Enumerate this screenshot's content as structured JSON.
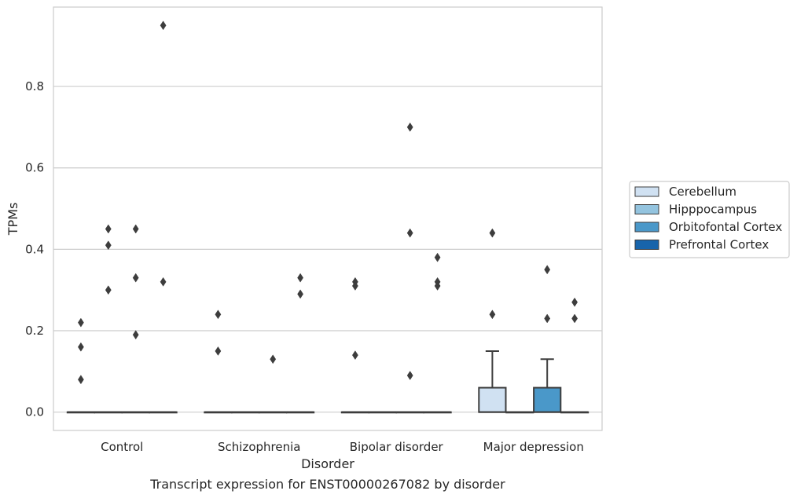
{
  "chart_data": {
    "type": "box",
    "title": "",
    "caption": "Transcript expression for ENST00000267082 by disorder",
    "xlabel": "Disorder",
    "ylabel": "TPMs",
    "ylim": [
      -0.045,
      0.995
    ],
    "yticks": [
      0.0,
      0.2,
      0.4,
      0.6,
      0.8
    ],
    "ytick_labels": [
      "0.0",
      "0.2",
      "0.4",
      "0.6",
      "0.8"
    ],
    "grid": "horizontal",
    "legend_position": "right",
    "categories": [
      "Control",
      "Schizophrenia",
      "Bipolar disorder",
      "Major depression"
    ],
    "series": [
      {
        "name": "Cerebellum",
        "color": "#d0e1f2",
        "boxes": [
          {
            "q1": 0,
            "median": 0,
            "q3": 0,
            "whisker_low": 0,
            "whisker_high": 0,
            "outliers": [
              0.22,
              0.16,
              0.08
            ]
          },
          {
            "q1": 0,
            "median": 0,
            "q3": 0,
            "whisker_low": 0,
            "whisker_high": 0,
            "outliers": [
              0.24,
              0.15
            ]
          },
          {
            "q1": 0,
            "median": 0,
            "q3": 0,
            "whisker_low": 0,
            "whisker_high": 0,
            "outliers": [
              0.32,
              0.31,
              0.14
            ]
          },
          {
            "q1": 0,
            "median": 0,
            "q3": 0.06,
            "whisker_low": 0,
            "whisker_high": 0.15,
            "outliers": [
              0.44,
              0.24
            ]
          }
        ]
      },
      {
        "name": "Hipppocampus",
        "color": "#94c4df",
        "boxes": [
          {
            "q1": 0,
            "median": 0,
            "q3": 0,
            "whisker_low": 0,
            "whisker_high": 0,
            "outliers": [
              0.45,
              0.41,
              0.3
            ]
          },
          {
            "q1": 0,
            "median": 0,
            "q3": 0,
            "whisker_low": 0,
            "whisker_high": 0,
            "outliers": []
          },
          {
            "q1": 0,
            "median": 0,
            "q3": 0,
            "whisker_low": 0,
            "whisker_high": 0,
            "outliers": []
          },
          {
            "q1": 0,
            "median": 0,
            "q3": 0,
            "whisker_low": 0,
            "whisker_high": 0,
            "outliers": []
          }
        ]
      },
      {
        "name": "Orbitofontal Cortex",
        "color": "#4a98c9",
        "boxes": [
          {
            "q1": 0,
            "median": 0,
            "q3": 0,
            "whisker_low": 0,
            "whisker_high": 0,
            "outliers": [
              0.45,
              0.33,
              0.19
            ]
          },
          {
            "q1": 0,
            "median": 0,
            "q3": 0,
            "whisker_low": 0,
            "whisker_high": 0,
            "outliers": [
              0.13
            ]
          },
          {
            "q1": 0,
            "median": 0,
            "q3": 0,
            "whisker_low": 0,
            "whisker_high": 0,
            "outliers": [
              0.7,
              0.44,
              0.09
            ]
          },
          {
            "q1": 0,
            "median": 0,
            "q3": 0.06,
            "whisker_low": 0,
            "whisker_high": 0.13,
            "outliers": [
              0.35,
              0.23
            ]
          }
        ]
      },
      {
        "name": "Prefrontal Cortex",
        "color": "#1764ab",
        "boxes": [
          {
            "q1": 0,
            "median": 0,
            "q3": 0,
            "whisker_low": 0,
            "whisker_high": 0,
            "outliers": [
              0.95,
              0.32
            ]
          },
          {
            "q1": 0,
            "median": 0,
            "q3": 0,
            "whisker_low": 0,
            "whisker_high": 0,
            "outliers": [
              0.33,
              0.29
            ]
          },
          {
            "q1": 0,
            "median": 0,
            "q3": 0,
            "whisker_low": 0,
            "whisker_high": 0,
            "outliers": [
              0.38,
              0.32,
              0.31
            ]
          },
          {
            "q1": 0,
            "median": 0,
            "q3": 0,
            "whisker_low": 0,
            "whisker_high": 0,
            "outliers": [
              0.27,
              0.23
            ]
          }
        ]
      }
    ]
  }
}
